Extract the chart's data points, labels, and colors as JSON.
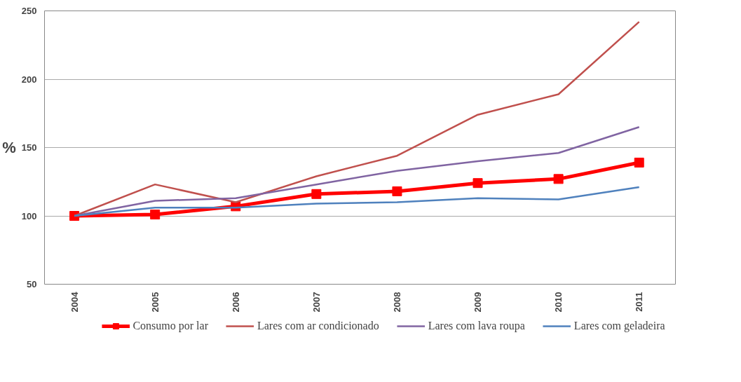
{
  "chart_data": {
    "type": "line",
    "ylabel": "%",
    "categories": [
      "2004",
      "2005",
      "2006",
      "2007",
      "2008",
      "2009",
      "2010",
      "2011"
    ],
    "series": [
      {
        "name": "Consumo por lar",
        "color": "#ff0000",
        "marker": "square",
        "values": [
          100,
          101,
          107,
          116,
          118,
          124,
          127,
          139
        ]
      },
      {
        "name": "Lares com ar condicionado",
        "color": "#c0504d",
        "marker": "none",
        "values": [
          100,
          123,
          110,
          129,
          144,
          174,
          189,
          242
        ]
      },
      {
        "name": "Lares com lava roupa",
        "color": "#8064a2",
        "marker": "none",
        "values": [
          100,
          111,
          113,
          123,
          133,
          140,
          146,
          165
        ]
      },
      {
        "name": "Lares com geladeira",
        "color": "#4f81bd",
        "marker": "none",
        "values": [
          100,
          106,
          106,
          109,
          110,
          113,
          112,
          121
        ]
      }
    ],
    "ylim": [
      50,
      250
    ],
    "yticks": [
      50,
      100,
      150,
      200,
      250
    ],
    "grid": "y",
    "legend": "bottom",
    "line_style": "solid"
  }
}
